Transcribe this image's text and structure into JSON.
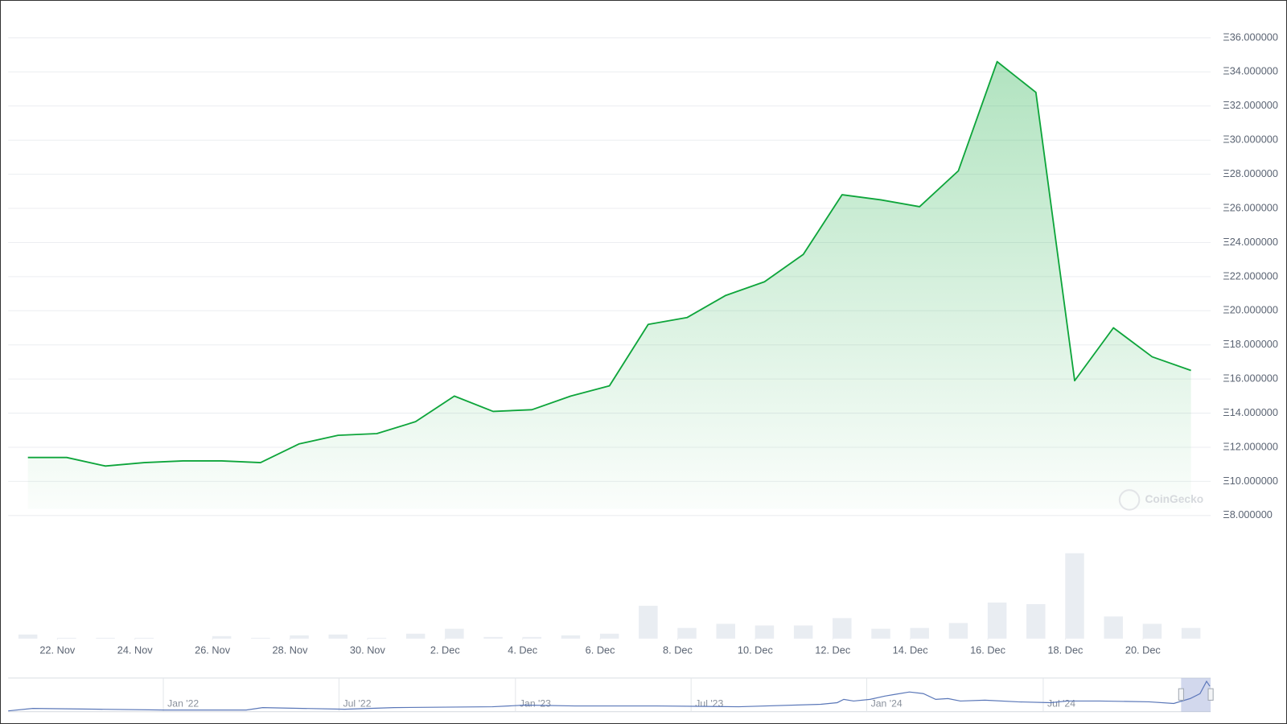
{
  "chart_data": {
    "type": "line",
    "x": [
      0,
      1,
      2,
      3,
      4,
      5,
      6,
      7,
      8,
      9,
      10,
      11,
      12,
      13,
      14,
      15,
      16,
      17,
      18,
      19,
      20,
      21,
      22,
      23,
      24,
      25,
      26,
      27,
      28,
      29,
      30
    ],
    "values": [
      11.4,
      11.4,
      10.9,
      11.1,
      11.2,
      11.2,
      11.1,
      12.2,
      12.7,
      12.8,
      13.5,
      15.0,
      14.1,
      14.2,
      15.0,
      15.6,
      19.2,
      19.6,
      20.9,
      21.7,
      23.3,
      26.8,
      26.5,
      26.1,
      28.2,
      34.6,
      32.8,
      15.9,
      19.0,
      17.3,
      16.5
    ],
    "volume": [
      5,
      1,
      1,
      1,
      0,
      3,
      1,
      4,
      5,
      1,
      6,
      12,
      2,
      2,
      4,
      6,
      40,
      13,
      18,
      16,
      16,
      25,
      12,
      13,
      19,
      44,
      42,
      104,
      27,
      18,
      13
    ],
    "color": "#0ea53b",
    "volume_color": "#e9edf2",
    "ylim": [
      8,
      36
    ],
    "yticks": [
      {
        "value": 36,
        "label": "Ξ36.000000"
      },
      {
        "value": 34,
        "label": "Ξ34.000000"
      },
      {
        "value": 32,
        "label": "Ξ32.000000"
      },
      {
        "value": 30,
        "label": "Ξ30.000000"
      },
      {
        "value": 28,
        "label": "Ξ28.000000"
      },
      {
        "value": 26,
        "label": "Ξ26.000000"
      },
      {
        "value": 24,
        "label": "Ξ24.000000"
      },
      {
        "value": 22,
        "label": "Ξ22.000000"
      },
      {
        "value": 20,
        "label": "Ξ20.000000"
      },
      {
        "value": 18,
        "label": "Ξ18.000000"
      },
      {
        "value": 16,
        "label": "Ξ16.000000"
      },
      {
        "value": 14,
        "label": "Ξ14.000000"
      },
      {
        "value": 12,
        "label": "Ξ12.000000"
      },
      {
        "value": 10,
        "label": "Ξ10.000000"
      },
      {
        "value": 8,
        "label": "Ξ8.000000"
      }
    ],
    "xlim": [
      0,
      30
    ],
    "xticks": [
      {
        "value": 0.76,
        "label": "22. Nov"
      },
      {
        "value": 2.76,
        "label": "24. Nov"
      },
      {
        "value": 4.76,
        "label": "26. Nov"
      },
      {
        "value": 6.76,
        "label": "28. Nov"
      },
      {
        "value": 8.76,
        "label": "30. Nov"
      },
      {
        "value": 10.76,
        "label": "2. Dec"
      },
      {
        "value": 12.76,
        "label": "4. Dec"
      },
      {
        "value": 14.76,
        "label": "6. Dec"
      },
      {
        "value": 16.76,
        "label": "8. Dec"
      },
      {
        "value": 18.76,
        "label": "10. Dec"
      },
      {
        "value": 20.76,
        "label": "12. Dec"
      },
      {
        "value": 22.76,
        "label": "14. Dec"
      },
      {
        "value": 24.76,
        "label": "16. Dec"
      },
      {
        "value": 26.76,
        "label": "18. Dec"
      },
      {
        "value": 28.76,
        "label": "20. Dec"
      }
    ],
    "grid": true,
    "watermark": "CoinGecko",
    "navigator_labels": [
      "Jan '22",
      "Jul '22",
      "Jan '23",
      "Jul '23",
      "Jan '24",
      "Jul '24"
    ]
  }
}
